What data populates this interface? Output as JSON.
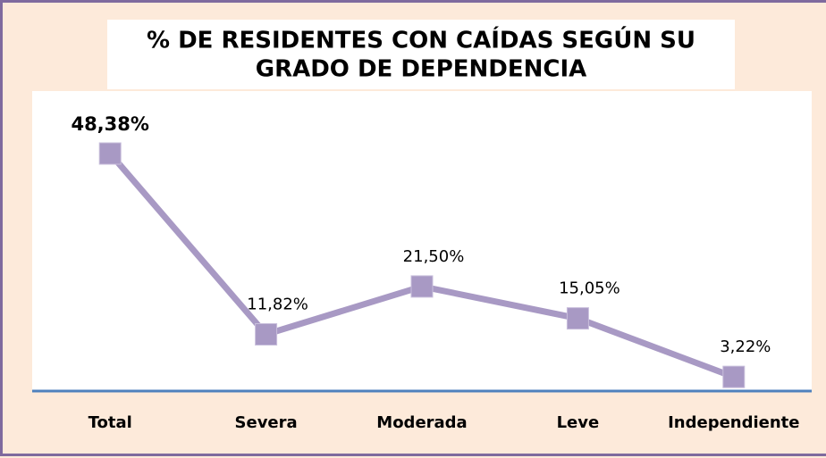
{
  "chart_data": {
    "type": "line",
    "title": [
      "%  DE RESIDENTES CON CAÍDAS SEGÚN SU",
      "GRADO DE DEPENDENCIA"
    ],
    "categories": [
      "Total",
      "Severa",
      "Moderada",
      "Leve",
      "Independiente"
    ],
    "values": [
      48.38,
      11.82,
      21.5,
      15.05,
      3.22
    ],
    "value_labels": [
      "48,38%",
      "11,82%",
      "21,50%",
      "15,05%",
      "3,22%"
    ],
    "color": "#a899c4",
    "ylim": [
      0,
      50
    ]
  }
}
